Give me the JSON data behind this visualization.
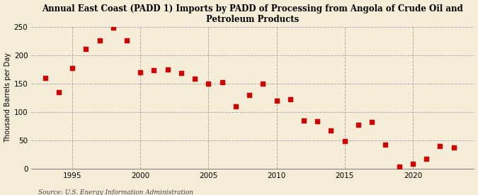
{
  "title": "Annual East Coast (PADD 1) Imports by PADD of Processing from Angola of Crude Oil and\nPetroleum Products",
  "ylabel": "Thousand Barrels per Day",
  "source": "Source: U.S. Energy Information Administration",
  "background_color": "#f5edd8",
  "plot_bg_color": "#f5edd8",
  "marker_color": "#cc0000",
  "years": [
    1993,
    1994,
    1995,
    1996,
    1997,
    1998,
    1999,
    2000,
    2001,
    2002,
    2003,
    2004,
    2005,
    2006,
    2007,
    2008,
    2009,
    2010,
    2011,
    2012,
    2013,
    2014,
    2015,
    2016,
    2017,
    2018,
    2019,
    2020,
    2021,
    2022,
    2023
  ],
  "values": [
    160,
    135,
    177,
    211,
    226,
    248,
    226,
    170,
    173,
    175,
    168,
    158,
    150,
    152,
    110,
    130,
    150,
    120,
    122,
    85,
    83,
    67,
    49,
    77,
    82,
    43,
    4,
    9,
    17,
    40,
    38
  ],
  "xlim": [
    1992,
    2024.5
  ],
  "ylim": [
    0,
    250
  ],
  "yticks": [
    0,
    50,
    100,
    150,
    200,
    250
  ],
  "xticks": [
    1995,
    2000,
    2005,
    2010,
    2015,
    2020
  ],
  "title_fontsize": 8.5,
  "ylabel_fontsize": 7,
  "tick_fontsize": 7.5,
  "source_fontsize": 6.5,
  "marker_size": 14
}
